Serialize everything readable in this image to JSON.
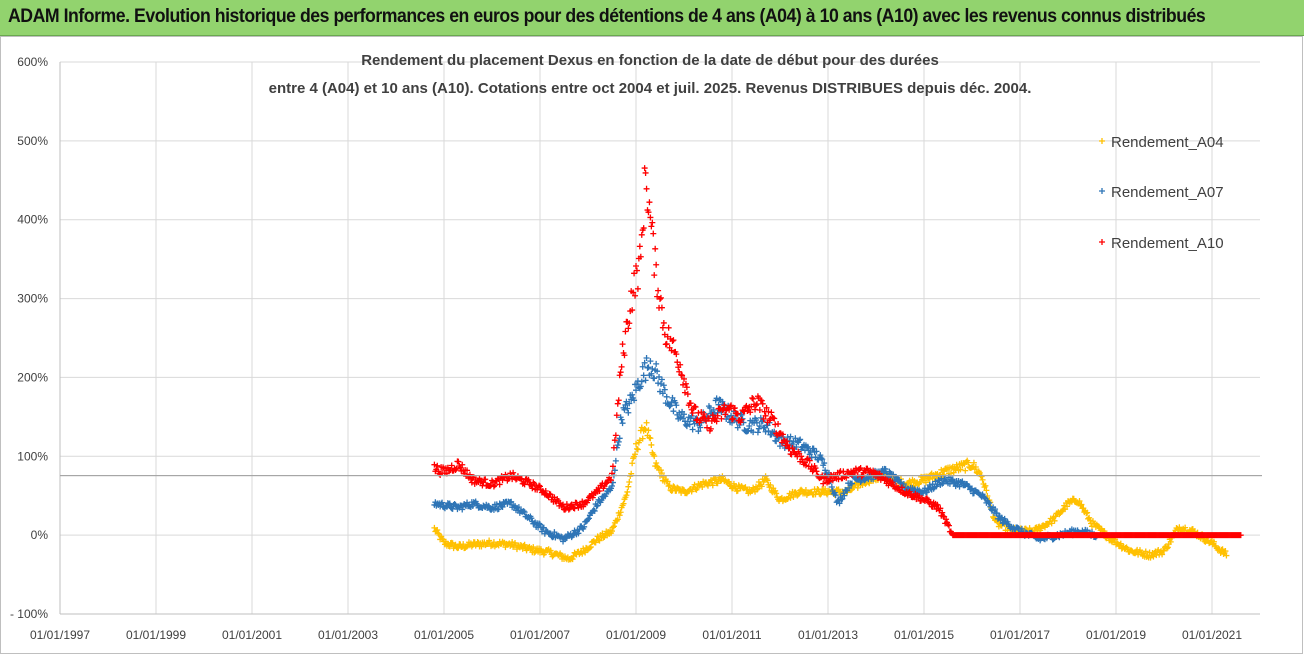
{
  "banner": {
    "text": "ADAM Informe. Evolution historique des performances en euros pour des détentions de 4 ans (A04) à 10 ans (A10) avec les revenus connus distribués"
  },
  "chart_data": {
    "type": "scatter",
    "title_line1": "Rendement du placement Dexus en fonction de la date de début pour des durées",
    "title_line2": "entre 4 (A04) et 10 ans (A10).  Cotations entre oct 2004 et juil. 2025. Revenus DISTRIBUES depuis déc. 2004.",
    "xlabel": "",
    "ylabel": "",
    "x_tick_labels": [
      "01/01/1997",
      "01/01/1999",
      "01/01/2001",
      "01/01/2003",
      "01/01/2005",
      "01/01/2007",
      "01/01/2009",
      "01/01/2011",
      "01/01/2013",
      "01/01/2015",
      "01/01/2017",
      "01/01/2019",
      "01/01/2021"
    ],
    "y_tick_labels": [
      "- 100%",
      "0%",
      "100%",
      "200%",
      "300%",
      "400%",
      "500%",
      "600%"
    ],
    "xlim_years": [
      1997.0,
      2022.0
    ],
    "ylim_percent": [
      -100,
      600
    ],
    "marker": "plus",
    "grid": "vertical and horizontal",
    "legend_position": "right",
    "colors": {
      "A04": "#ffc000",
      "A07": "#2e75b6",
      "A10": "#ff0000"
    },
    "series": [
      {
        "name": "Rendement_A04",
        "key": "A04",
        "points": [
          [
            2004.8,
            8
          ],
          [
            2005.0,
            -10
          ],
          [
            2005.3,
            -15
          ],
          [
            2005.6,
            -12
          ],
          [
            2006.0,
            -10
          ],
          [
            2006.4,
            -12
          ],
          [
            2006.8,
            -18
          ],
          [
            2007.2,
            -22
          ],
          [
            2007.6,
            -30
          ],
          [
            2007.9,
            -20
          ],
          [
            2008.2,
            -5
          ],
          [
            2008.5,
            5
          ],
          [
            2008.8,
            50
          ],
          [
            2009.0,
            110
          ],
          [
            2009.2,
            140
          ],
          [
            2009.4,
            90
          ],
          [
            2009.7,
            60
          ],
          [
            2010.0,
            55
          ],
          [
            2010.4,
            65
          ],
          [
            2010.8,
            70
          ],
          [
            2011.1,
            60
          ],
          [
            2011.4,
            55
          ],
          [
            2011.7,
            70
          ],
          [
            2012.0,
            45
          ],
          [
            2012.4,
            55
          ],
          [
            2012.8,
            55
          ],
          [
            2013.1,
            55
          ],
          [
            2013.4,
            55
          ],
          [
            2013.8,
            70
          ],
          [
            2014.2,
            75
          ],
          [
            2014.6,
            65
          ],
          [
            2015.0,
            70
          ],
          [
            2015.4,
            80
          ],
          [
            2015.7,
            85
          ],
          [
            2016.0,
            90
          ],
          [
            2016.2,
            75
          ],
          [
            2016.5,
            15
          ],
          [
            2016.9,
            5
          ],
          [
            2017.3,
            5
          ],
          [
            2017.7,
            20
          ],
          [
            2018.0,
            40
          ],
          [
            2018.2,
            45
          ],
          [
            2018.5,
            15
          ],
          [
            2018.9,
            -5
          ],
          [
            2019.3,
            -20
          ],
          [
            2019.7,
            -25
          ],
          [
            2020.0,
            -20
          ],
          [
            2020.3,
            10
          ],
          [
            2020.6,
            5
          ],
          [
            2021.0,
            -10
          ],
          [
            2021.3,
            -25
          ]
        ]
      },
      {
        "name": "Rendement_A07",
        "key": "A07",
        "points": [
          [
            2004.8,
            40
          ],
          [
            2005.0,
            38
          ],
          [
            2005.3,
            35
          ],
          [
            2005.6,
            40
          ],
          [
            2006.0,
            35
          ],
          [
            2006.4,
            40
          ],
          [
            2006.8,
            20
          ],
          [
            2007.1,
            5
          ],
          [
            2007.5,
            -5
          ],
          [
            2007.9,
            10
          ],
          [
            2008.2,
            40
          ],
          [
            2008.5,
            60
          ],
          [
            2008.7,
            150
          ],
          [
            2008.9,
            170
          ],
          [
            2009.1,
            200
          ],
          [
            2009.3,
            220
          ],
          [
            2009.6,
            180
          ],
          [
            2009.9,
            150
          ],
          [
            2010.3,
            140
          ],
          [
            2010.7,
            165
          ],
          [
            2011.0,
            150
          ],
          [
            2011.3,
            140
          ],
          [
            2011.7,
            140
          ],
          [
            2012.0,
            120
          ],
          [
            2012.4,
            115
          ],
          [
            2012.8,
            100
          ],
          [
            2013.0,
            80
          ],
          [
            2013.2,
            40
          ],
          [
            2013.5,
            70
          ],
          [
            2013.9,
            75
          ],
          [
            2014.2,
            80
          ],
          [
            2014.6,
            60
          ],
          [
            2015.0,
            55
          ],
          [
            2015.4,
            70
          ],
          [
            2015.8,
            65
          ],
          [
            2016.2,
            50
          ],
          [
            2016.6,
            20
          ],
          [
            2017.0,
            5
          ],
          [
            2017.4,
            -5
          ],
          [
            2017.8,
            0
          ],
          [
            2018.2,
            5
          ],
          [
            2018.6,
            0
          ]
        ]
      },
      {
        "name": "Rendement_A10",
        "key": "A10",
        "points": [
          [
            2004.8,
            85
          ],
          [
            2005.0,
            80
          ],
          [
            2005.3,
            90
          ],
          [
            2005.6,
            70
          ],
          [
            2006.0,
            65
          ],
          [
            2006.4,
            75
          ],
          [
            2006.8,
            65
          ],
          [
            2007.1,
            55
          ],
          [
            2007.5,
            35
          ],
          [
            2007.9,
            40
          ],
          [
            2008.2,
            55
          ],
          [
            2008.5,
            75
          ],
          [
            2008.7,
            220
          ],
          [
            2008.9,
            300
          ],
          [
            2009.1,
            350
          ],
          [
            2009.2,
            460
          ],
          [
            2009.4,
            340
          ],
          [
            2009.6,
            260
          ],
          [
            2009.9,
            220
          ],
          [
            2010.2,
            155
          ],
          [
            2010.5,
            140
          ],
          [
            2010.9,
            160
          ],
          [
            2011.2,
            150
          ],
          [
            2011.5,
            170
          ],
          [
            2011.9,
            140
          ],
          [
            2012.2,
            110
          ],
          [
            2012.6,
            90
          ],
          [
            2012.9,
            70
          ],
          [
            2013.2,
            75
          ],
          [
            2013.5,
            80
          ],
          [
            2013.9,
            80
          ],
          [
            2014.2,
            70
          ],
          [
            2014.6,
            55
          ],
          [
            2015.0,
            45
          ],
          [
            2015.3,
            35
          ],
          [
            2015.6,
            0
          ],
          [
            2016.0,
            0
          ],
          [
            2017.0,
            0
          ],
          [
            2018.0,
            0
          ],
          [
            2019.0,
            0
          ],
          [
            2020.0,
            0
          ],
          [
            2021.0,
            0
          ],
          [
            2021.6,
            0
          ]
        ]
      }
    ]
  }
}
